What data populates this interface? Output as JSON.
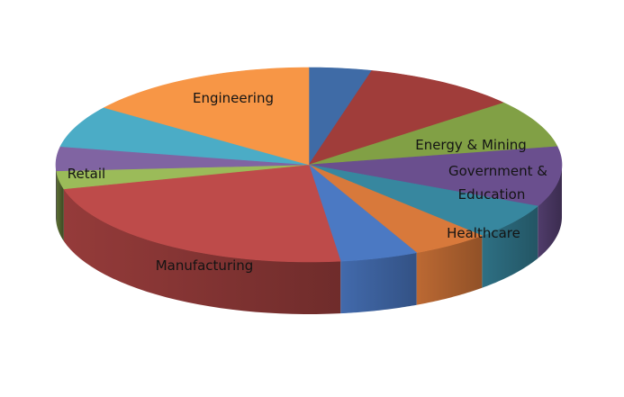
{
  "chart_data": {
    "type": "pie",
    "style": "3d-exploded-perspective",
    "title": "",
    "legend": "none",
    "slices": [
      {
        "label": "",
        "value": 4,
        "color": "#3F6BA6"
      },
      {
        "label": "",
        "value": 10,
        "color": "#A03D3A"
      },
      {
        "label": "Energy & Mining",
        "value": 8,
        "color": "#81A045"
      },
      {
        "label": "Government & Education",
        "value": 10,
        "color": "#6A4F8E"
      },
      {
        "label": "Healthcare",
        "value": 6,
        "color": "#37879F"
      },
      {
        "label": "",
        "value": 5,
        "color": "#D8793B"
      },
      {
        "label": "",
        "value": 5,
        "color": "#4B79C3"
      },
      {
        "label": "Manufacturing",
        "value": 23,
        "color": "#BE4B4A"
      },
      {
        "label": "",
        "value": 3,
        "color": "#9BBB59"
      },
      {
        "label": "Retail",
        "value": 4,
        "color": "#8064A2"
      },
      {
        "label": "",
        "value": 7,
        "color": "#4BACC6"
      },
      {
        "label": "Engineering",
        "value": 15,
        "color": "#F79646"
      }
    ]
  }
}
